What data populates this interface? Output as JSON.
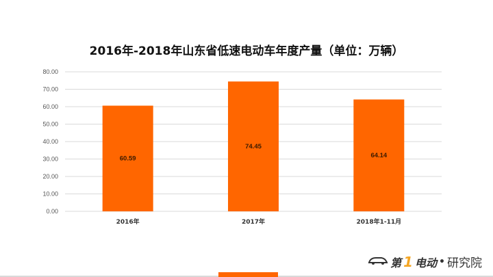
{
  "chart_data": {
    "type": "bar",
    "title": "2016年-2018年山东省低速电动车年度产量（单位：万辆）",
    "categories": [
      "2016年",
      "2017年",
      "2018年1-11月"
    ],
    "values": [
      60.59,
      74.45,
      64.14
    ],
    "value_labels": [
      "60.59",
      "74.45",
      "64.14"
    ],
    "ylim": [
      0,
      80
    ],
    "yticks": [
      "0.00",
      "10.00",
      "20.00",
      "30.00",
      "40.00",
      "50.00",
      "60.00",
      "70.00",
      "80.00"
    ],
    "xlabel": "",
    "ylabel": "",
    "grid": true,
    "legend": "none",
    "bar_color": "#ff6600"
  },
  "branding": {
    "logo_text_1": "第",
    "logo_text_one": "1",
    "logo_text_2": "电动",
    "logo_dot": "•",
    "logo_suffix": "研究院"
  },
  "colors": {
    "accent": "#ff6600",
    "grid": "#d9d9d9"
  }
}
